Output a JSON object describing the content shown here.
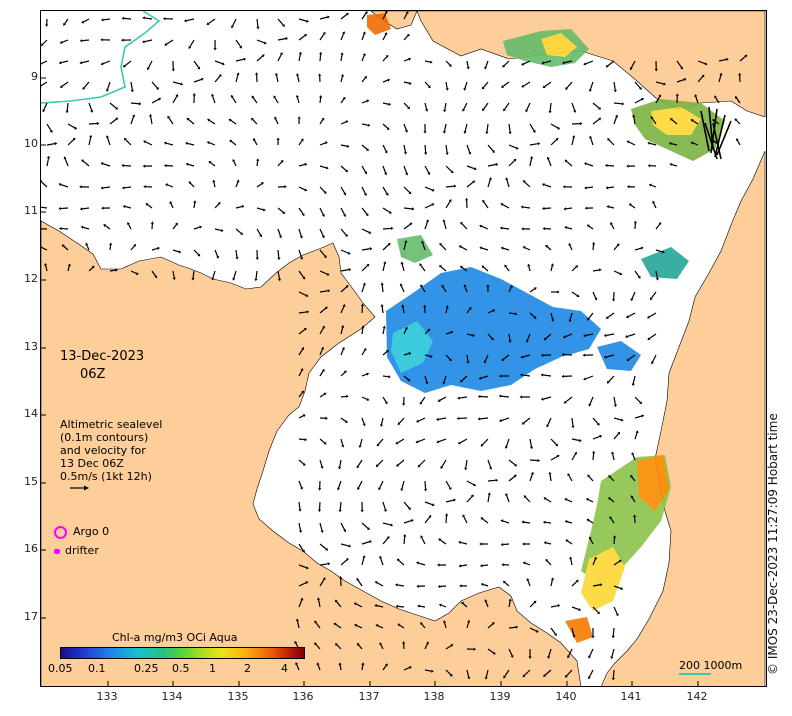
{
  "map": {
    "date": "13-Dec-2023",
    "time": "06Z",
    "legend_info": [
      "Altimetric sealevel",
      "(0.1m contours)",
      "and velocity for",
      "13 Dec 06Z",
      "0.5m/s (1kt 12h)"
    ],
    "argo_label": "Argo 0",
    "drifter_label": "drifter",
    "colorbar_title": "Chl-a mg/m3 OCi Aqua",
    "colorbar_ticks": [
      "0.05",
      "0.1",
      "0.25",
      "0.5",
      "1",
      "2",
      "4"
    ],
    "scale_label": "200  1000m",
    "credit": "© IMOS 23-Dec-2023 11:27:09 Hobart time",
    "lat_ticks": [
      "9",
      "10",
      "11",
      "12",
      "13",
      "14",
      "15",
      "16",
      "17"
    ],
    "lon_ticks": [
      "133",
      "134",
      "135",
      "136",
      "137",
      "138",
      "139",
      "140",
      "141",
      "142"
    ],
    "colors": {
      "land": "#fdcd9a",
      "coast": "#000000",
      "arrow": "#000000",
      "argo": "#ff00ff",
      "bathy": "#3ec6b4"
    }
  }
}
